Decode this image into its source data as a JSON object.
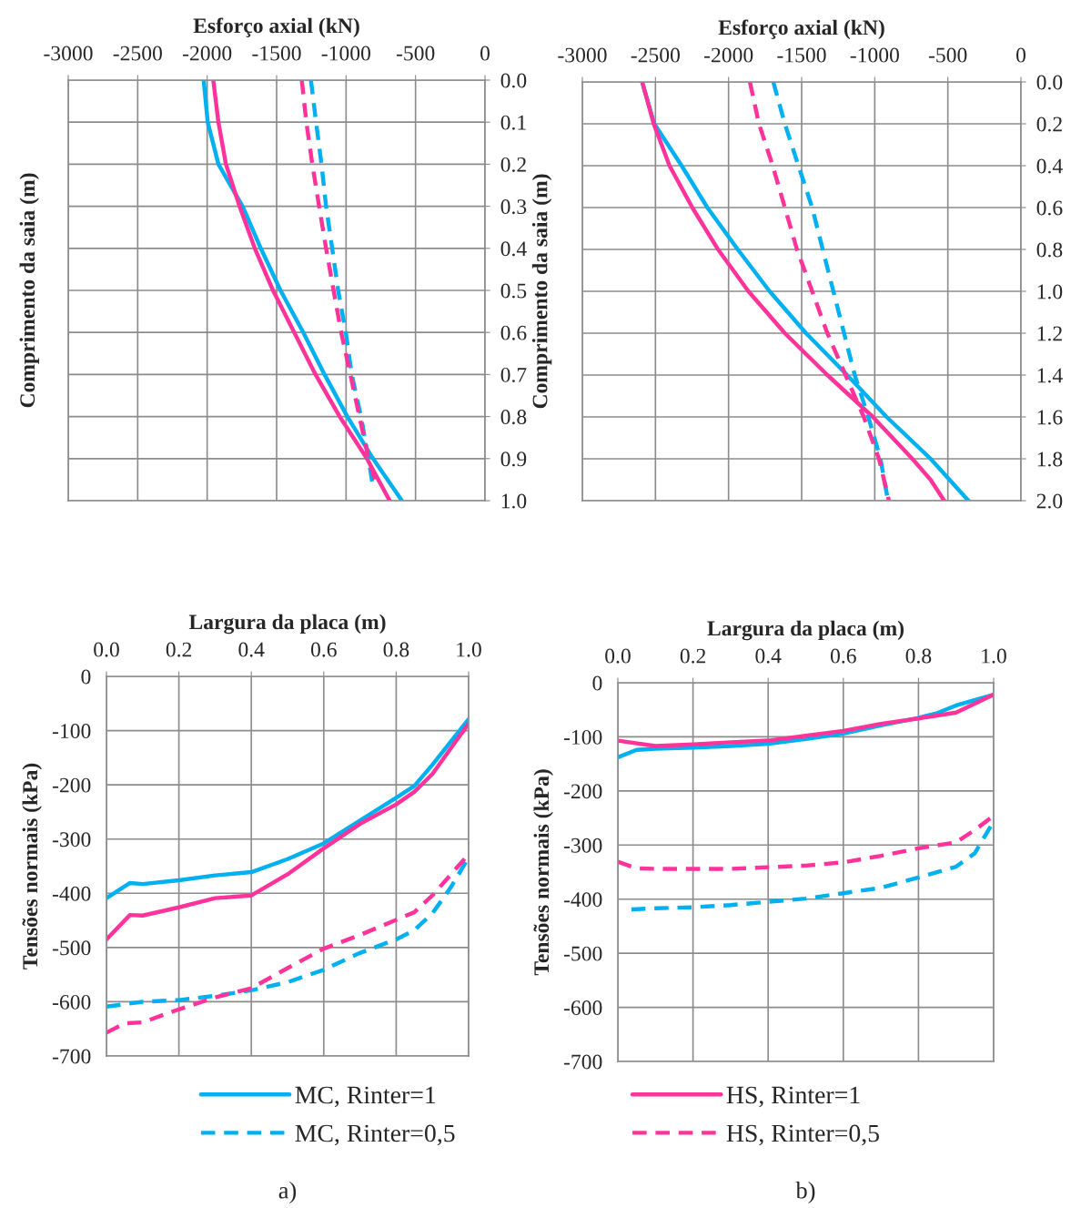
{
  "chart_data": [
    {
      "type": "line",
      "xlabel": "Esforço axial (kN)",
      "ylabel": "Comprimento da saia (m)",
      "xlim": [
        -3000,
        0
      ],
      "xticks": [
        -3000,
        -2500,
        -2000,
        -1500,
        -1000,
        -500,
        0
      ],
      "ylim": [
        1.0,
        0.0
      ],
      "yticks": [
        {
          "value": 0.0,
          "label": "0.0"
        },
        {
          "value": 0.1,
          "label": "0.1"
        },
        {
          "value": 0.2,
          "label": "0.2"
        },
        {
          "value": 0.3,
          "label": "0.3"
        },
        {
          "value": 0.4,
          "label": "0.4"
        },
        {
          "value": 0.5,
          "label": "0.5"
        },
        {
          "value": 0.6,
          "label": "0.6"
        },
        {
          "value": 0.7,
          "label": "0.7"
        },
        {
          "value": 0.8,
          "label": "0.8"
        },
        {
          "value": 0.9,
          "label": "0.9"
        },
        {
          "value": 1.0,
          "label": "1.0"
        }
      ],
      "grid": true,
      "series": [
        {
          "color": "#00b0f0",
          "line_style": "solid",
          "x": [
            -2025,
            -1996,
            -1919,
            -1745,
            -1614,
            -1472,
            -1308,
            -1155,
            -991,
            -806,
            -598
          ],
          "values": [
            0.0,
            0.1,
            0.2,
            0.3,
            0.4,
            0.5,
            0.6,
            0.7,
            0.8,
            0.9,
            1.0
          ]
        },
        {
          "color": "#ff3399",
          "line_style": "solid",
          "x": [
            -1956,
            -1919,
            -1865,
            -1767,
            -1657,
            -1526,
            -1373,
            -1220,
            -1046,
            -850,
            -686
          ],
          "values": [
            0.0,
            0.1,
            0.2,
            0.3,
            0.4,
            0.5,
            0.6,
            0.7,
            0.8,
            0.9,
            1.0
          ]
        },
        {
          "color": "#00b0f0",
          "line_style": "dashed",
          "x": [
            -1253,
            -1216,
            -1177,
            -1144,
            -1100,
            -1057,
            -1002,
            -959,
            -893,
            -838,
            -810
          ],
          "values": [
            0.0,
            0.1,
            0.2,
            0.3,
            0.4,
            0.5,
            0.6,
            0.7,
            0.8,
            0.9,
            0.96
          ]
        },
        {
          "color": "#ff3399",
          "line_style": "dashed",
          "x": [
            -1319,
            -1286,
            -1243,
            -1194,
            -1144,
            -1090,
            -1035,
            -969,
            -904,
            -838,
            -784
          ],
          "values": [
            0.0,
            0.1,
            0.2,
            0.3,
            0.4,
            0.5,
            0.6,
            0.7,
            0.8,
            0.9,
            0.96
          ]
        }
      ]
    },
    {
      "type": "line",
      "xlabel": "Esforço axial (kN)",
      "ylabel": "Comprimento da saia (m)",
      "xlim": [
        -3000,
        0
      ],
      "xticks": [
        -3000,
        -2500,
        -2000,
        -1500,
        -1000,
        -500,
        0
      ],
      "ylim": [
        2.0,
        0.0
      ],
      "yticks": [
        {
          "value": 0.0,
          "label": "0.0"
        },
        {
          "value": 0.2,
          "label": "0.2"
        },
        {
          "value": 0.4,
          "label": "0.4"
        },
        {
          "value": 0.6,
          "label": "0.6"
        },
        {
          "value": 0.8,
          "label": "0.8"
        },
        {
          "value": 1.0,
          "label": "1.0"
        },
        {
          "value": 1.2,
          "label": "1.2"
        },
        {
          "value": 1.4,
          "label": "1.4"
        },
        {
          "value": 1.6,
          "label": "1.6"
        },
        {
          "value": 1.8,
          "label": "1.8"
        },
        {
          "value": 2.0,
          "label": "2.0"
        }
      ],
      "grid": true,
      "series": [
        {
          "color": "#00b0f0",
          "line_style": "solid",
          "x": [
            -2591,
            -2508,
            -2321,
            -2145,
            -1937,
            -1719,
            -1470,
            -1189,
            -919,
            -618,
            -359
          ],
          "values": [
            0.0,
            0.2,
            0.4,
            0.6,
            0.8,
            1.0,
            1.2,
            1.4,
            1.6,
            1.8,
            2.0
          ]
        },
        {
          "color": "#ff3399",
          "line_style": "solid",
          "x": [
            -2591,
            -2512,
            -2404,
            -2248,
            -2072,
            -1864,
            -1615,
            -1324,
            -1013,
            -743,
            -618,
            -525
          ],
          "values": [
            0.0,
            0.2,
            0.4,
            0.6,
            0.8,
            1.0,
            1.2,
            1.4,
            1.6,
            1.8,
            1.9,
            2.0
          ]
        },
        {
          "color": "#00b0f0",
          "line_style": "dashed",
          "x": [
            -1694,
            -1615,
            -1522,
            -1428,
            -1356,
            -1283,
            -1210,
            -1137,
            -1044,
            -961,
            -909
          ],
          "values": [
            0.0,
            0.2,
            0.4,
            0.6,
            0.8,
            1.0,
            1.2,
            1.4,
            1.6,
            1.8,
            2.0
          ]
        },
        {
          "color": "#ff3399",
          "line_style": "dashed",
          "x": [
            -1854,
            -1792,
            -1698,
            -1615,
            -1532,
            -1428,
            -1324,
            -1200,
            -1075,
            -971,
            -903
          ],
          "values": [
            0.0,
            0.2,
            0.4,
            0.6,
            0.8,
            1.0,
            1.2,
            1.4,
            1.6,
            1.8,
            2.0
          ]
        }
      ]
    },
    {
      "type": "line",
      "xlabel": "Largura da placa (m)",
      "ylabel": "Tensões normais (kPa)",
      "annotations": [
        "a)"
      ],
      "xlim": [
        0.0,
        1.0
      ],
      "xticks": [
        {
          "value": 0.0,
          "label": "0.0"
        },
        {
          "value": 0.2,
          "label": "0.2"
        },
        {
          "value": 0.4,
          "label": "0.4"
        },
        {
          "value": 0.6,
          "label": "0.6"
        },
        {
          "value": 0.8,
          "label": "0.8"
        },
        {
          "value": 1.0,
          "label": "1.0"
        }
      ],
      "ylim": [
        -700,
        0
      ],
      "yticks": [
        0,
        -100,
        -200,
        -300,
        -400,
        -500,
        -600,
        -700
      ],
      "grid": true,
      "series": [
        {
          "color": "#00b0f0",
          "line_style": "solid",
          "x": [
            0.0,
            0.065,
            0.1,
            0.2,
            0.3,
            0.4,
            0.5,
            0.6,
            0.7,
            0.8,
            0.85,
            0.9,
            1.0
          ],
          "values": [
            -409,
            -381,
            -383,
            -376,
            -367,
            -361,
            -337,
            -308,
            -266,
            -224,
            -202,
            -163,
            -79
          ]
        },
        {
          "color": "#ff3399",
          "line_style": "solid",
          "x": [
            0.0,
            0.065,
            0.1,
            0.2,
            0.3,
            0.4,
            0.5,
            0.6,
            0.7,
            0.8,
            0.85,
            0.9,
            1.0
          ],
          "values": [
            -485,
            -440,
            -441,
            -426,
            -409,
            -404,
            -365,
            -317,
            -272,
            -236,
            -213,
            -180,
            -87
          ]
        },
        {
          "color": "#00b0f0",
          "line_style": "dashed",
          "x": [
            0.0,
            0.1,
            0.2,
            0.3,
            0.4,
            0.5,
            0.6,
            0.7,
            0.8,
            0.85,
            0.9,
            0.95,
            1.0
          ],
          "values": [
            -609,
            -600,
            -597,
            -589,
            -579,
            -564,
            -541,
            -510,
            -485,
            -468,
            -437,
            -390,
            -334
          ]
        },
        {
          "color": "#ff3399",
          "line_style": "dashed",
          "x": [
            0.0,
            0.05,
            0.1,
            0.2,
            0.3,
            0.4,
            0.5,
            0.6,
            0.7,
            0.8,
            0.85,
            0.9,
            1.0
          ],
          "values": [
            -657,
            -640,
            -638,
            -614,
            -592,
            -575,
            -538,
            -502,
            -477,
            -449,
            -435,
            -404,
            -328
          ]
        }
      ]
    },
    {
      "type": "line",
      "xlabel": "Largura da placa (m)",
      "ylabel": "Tensões normais (kPa)",
      "annotations": [
        "b)"
      ],
      "xlim": [
        0.0,
        1.0
      ],
      "xticks": [
        {
          "value": 0.0,
          "label": "0.0"
        },
        {
          "value": 0.2,
          "label": "0.2"
        },
        {
          "value": 0.4,
          "label": "0.4"
        },
        {
          "value": 0.6,
          "label": "0.6"
        },
        {
          "value": 0.8,
          "label": "0.8"
        },
        {
          "value": 1.0,
          "label": "1.0"
        }
      ],
      "ylim": [
        -700,
        0
      ],
      "yticks": [
        0,
        -100,
        -200,
        -300,
        -400,
        -500,
        -600,
        -700
      ],
      "grid": true,
      "legend": "bottom",
      "series": [
        {
          "name": "MC, Rinter=1",
          "color": "#00b0f0",
          "line_style": "solid",
          "x": [
            0.0,
            0.05,
            0.1,
            0.2,
            0.3,
            0.4,
            0.5,
            0.6,
            0.7,
            0.8,
            0.85,
            0.9,
            1.0
          ],
          "values": [
            -138,
            -124,
            -122,
            -120,
            -117,
            -113,
            -104,
            -94,
            -79,
            -65,
            -56,
            -42,
            -22
          ]
        },
        {
          "name": "HS, Rinter=1",
          "color": "#ff3399",
          "line_style": "solid",
          "x": [
            0.0,
            0.1,
            0.2,
            0.3,
            0.4,
            0.5,
            0.6,
            0.7,
            0.8,
            0.9,
            1.0
          ],
          "values": [
            -107,
            -117,
            -114,
            -110,
            -107,
            -98,
            -89,
            -76,
            -66,
            -55,
            -22
          ]
        },
        {
          "name": "MC, Rinter=0,5",
          "color": "#00b0f0",
          "line_style": "dashed",
          "x": [
            0.036,
            0.1,
            0.2,
            0.3,
            0.4,
            0.5,
            0.6,
            0.7,
            0.8,
            0.9,
            0.95,
            1.0
          ],
          "values": [
            -419,
            -417,
            -415,
            -411,
            -405,
            -399,
            -389,
            -379,
            -360,
            -340,
            -315,
            -256
          ]
        },
        {
          "name": "HS, Rinter=0,5",
          "color": "#ff3399",
          "line_style": "dashed",
          "x": [
            0.0,
            0.05,
            0.1,
            0.2,
            0.3,
            0.4,
            0.5,
            0.6,
            0.7,
            0.8,
            0.9,
            0.95,
            1.0
          ],
          "values": [
            -331,
            -343,
            -344,
            -344,
            -344,
            -341,
            -338,
            -332,
            -320,
            -306,
            -295,
            -272,
            -246
          ]
        }
      ]
    }
  ]
}
